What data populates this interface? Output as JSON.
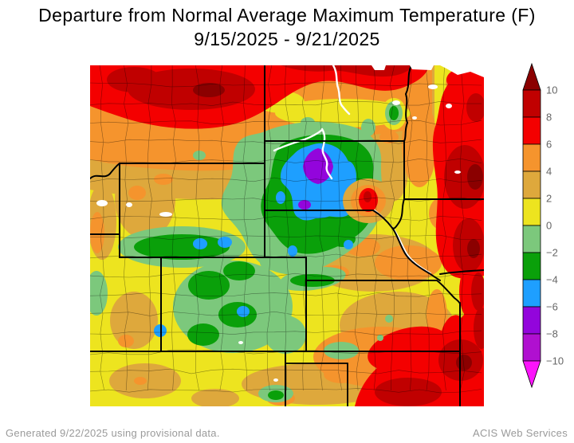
{
  "title": {
    "line1": "Departure from Normal Average Maximum Temperature (F)",
    "line2": "9/15/2025 - 9/21/2025"
  },
  "footer": {
    "generated_note": "Generated 9/22/2025 using provisional data.",
    "credit": "ACIS Web Services"
  },
  "colorbar": {
    "orientation": "vertical",
    "label_color": "#666666",
    "tick_labels": [
      "10",
      "8",
      "6",
      "4",
      "2",
      "0",
      "−2",
      "−4",
      "−6",
      "−8",
      "−10"
    ],
    "tick_values": [
      10,
      8,
      6,
      4,
      2,
      0,
      -2,
      -4,
      -6,
      -8,
      -10
    ],
    "arrow_above": {
      "range": "> 10",
      "color": "#8B0000"
    },
    "arrow_below": {
      "range": "< -10",
      "color": "#FB14FB"
    },
    "bands_high_to_low": [
      {
        "range": "8 to 10",
        "color": "#C00000"
      },
      {
        "range": "6 to 8",
        "color": "#F40000"
      },
      {
        "range": "4 to 6",
        "color": "#F5942D"
      },
      {
        "range": "2 to 4",
        "color": "#DEA83C"
      },
      {
        "range": "0 to 2",
        "color": "#EDE41F"
      },
      {
        "range": "-2 to 0",
        "color": "#7CC87C"
      },
      {
        "range": "-4 to -2",
        "color": "#0AA00A"
      },
      {
        "range": "-6 to -4",
        "color": "#1E9FFF"
      },
      {
        "range": "-8 to -6",
        "color": "#9305DC"
      },
      {
        "range": "-10 to -8",
        "color": "#B010D0"
      }
    ]
  },
  "map": {
    "boundary_line_color": "#000000",
    "river_color": "#ffffff",
    "visible_states": [
      "Montana",
      "North Dakota",
      "Minnesota",
      "Wyoming",
      "South Dakota",
      "Iowa",
      "Nebraska",
      "Colorado",
      "Kansas",
      "Missouri",
      "Utah",
      "Idaho",
      "New Mexico",
      "Oklahoma",
      "Texas"
    ]
  },
  "chart_data": {
    "type": "heatmap",
    "title": "Departure from Normal Average Maximum Temperature (F)",
    "subtitle_date_range": "9/15/2025 - 9/21/2025",
    "units": "degrees F departure from normal",
    "legend_position": "right",
    "colorbar_range": [
      -10,
      10
    ],
    "colorbar_step": 2,
    "colorbar_ticks": [
      10,
      8,
      6,
      4,
      2,
      0,
      -2,
      -4,
      -6,
      -8,
      -10
    ],
    "regions": [
      {
        "area": "Montana and far northern North Dakota (top of map)",
        "departure_f": "+6 to +10"
      },
      {
        "area": "central/eastern North Dakota",
        "departure_f": "+4 to +6"
      },
      {
        "area": "Minnesota / Iowa / Missouri band along east edge",
        "departure_f": "+6 to +10"
      },
      {
        "area": "central South Dakota cold pocket",
        "departure_f": "-4 to -10"
      },
      {
        "area": "greens surrounding cold pocket (SD, NE panhandle, N Colorado Rockies)",
        "departure_f": "-2 to -4"
      },
      {
        "area": "Wyoming, western Nebraska, Utah strip",
        "departure_f": "0 to +4"
      },
      {
        "area": "small warm bullseye near SE South Dakota / NE Nebraska border",
        "departure_f": "+6 to +8"
      },
      {
        "area": "central and southern Kansas, Oklahoma/Texas panhandles",
        "departure_f": "+2 to +6"
      },
      {
        "area": "southeastern Kansas / Missouri corner (bottom right)",
        "departure_f": "+6 to +10"
      }
    ],
    "generated_note": "Generated 9/22/2025 using provisional data.",
    "source": "ACIS Web Services"
  }
}
